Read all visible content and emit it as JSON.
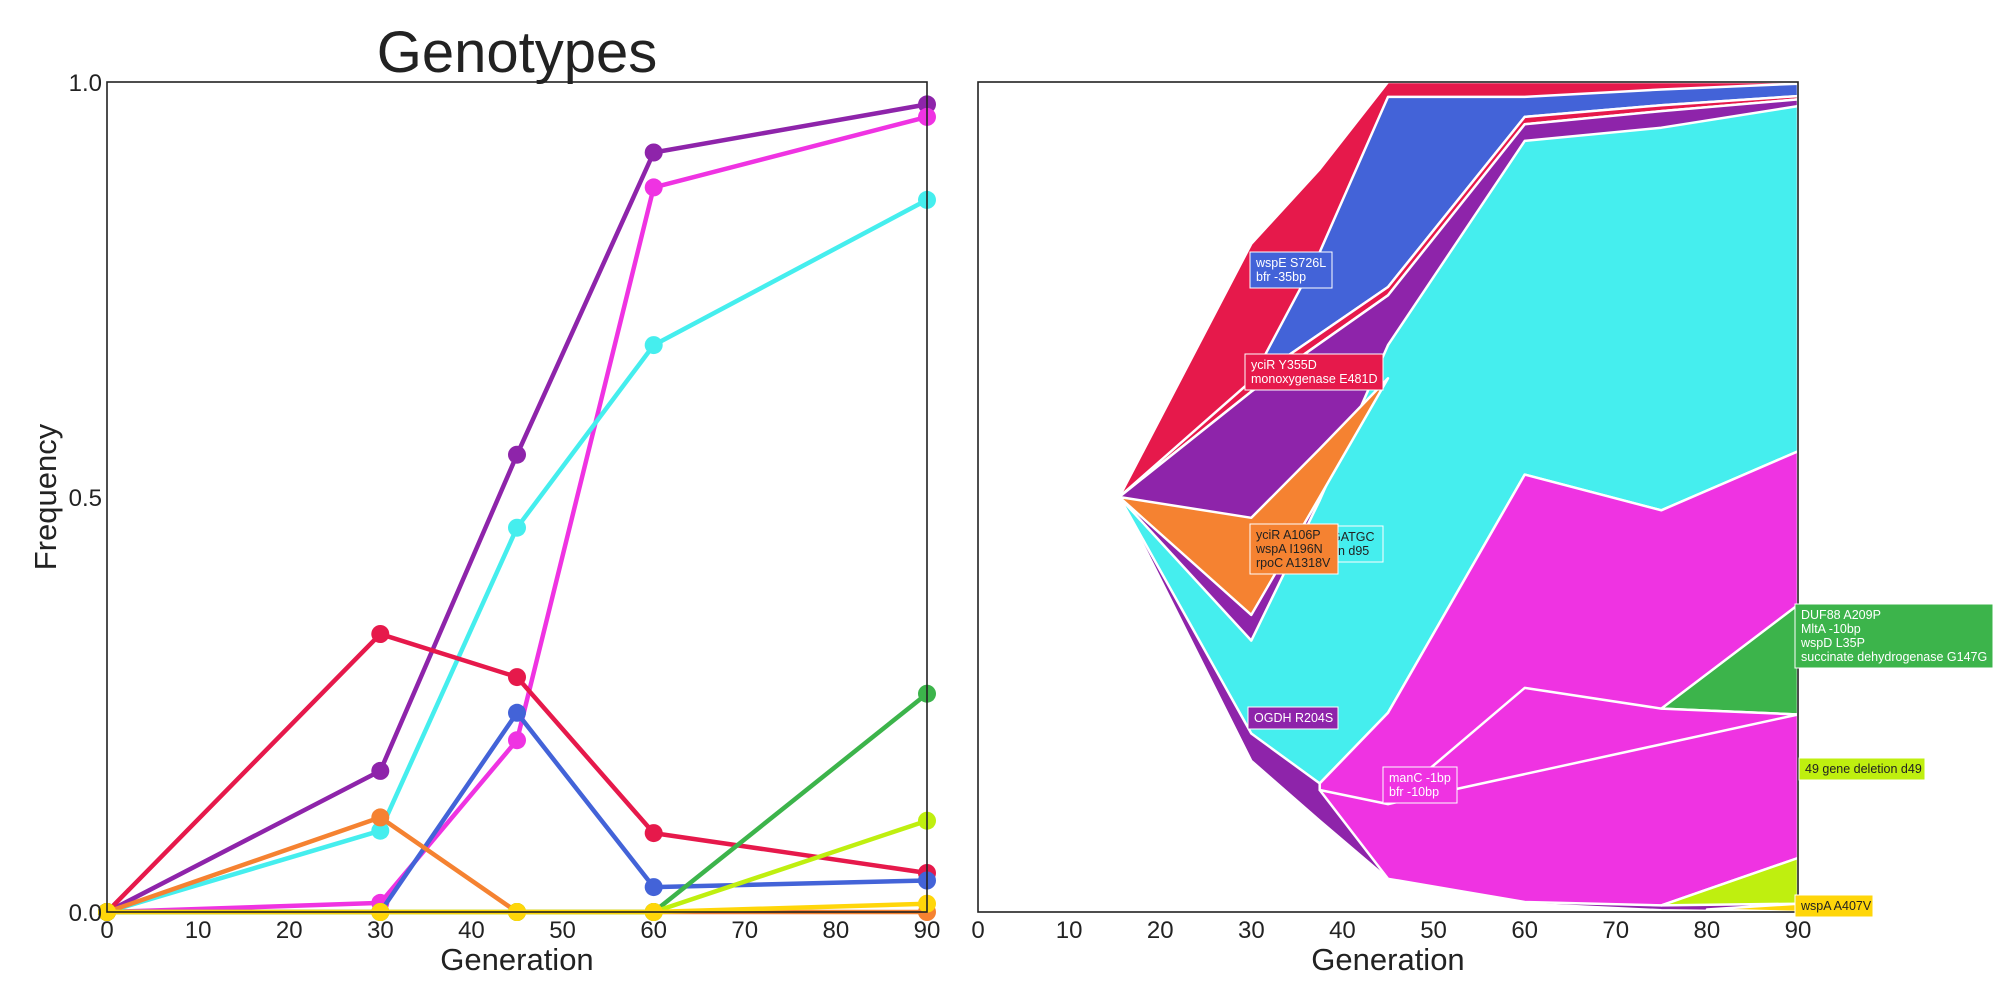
{
  "chart_data": [
    {
      "type": "line",
      "title": "Genotypes",
      "xlabel": "Generation",
      "ylabel": "Frequency",
      "xlim": [
        0,
        90
      ],
      "ylim": [
        0,
        1
      ],
      "x_ticks": [
        "0",
        "10",
        "20",
        "30",
        "40",
        "50",
        "60",
        "70",
        "80",
        "90"
      ],
      "y_ticks": [
        "0.0",
        "0.5",
        "1.0"
      ],
      "grid": false,
      "x": [
        0,
        30,
        45,
        60,
        90
      ],
      "series": [
        {
          "color": "#8e24aa",
          "values": [
            0.0,
            0.17,
            0.551,
            0.915,
            0.973
          ]
        },
        {
          "color": "#ef33e2",
          "values": [
            0.0,
            0.011,
            0.207,
            0.873,
            0.958
          ]
        },
        {
          "color": "#45eeee",
          "values": [
            0.0,
            0.098,
            0.463,
            0.683,
            0.858
          ]
        },
        {
          "color": "#e6194b",
          "values": [
            0.0,
            0.335,
            0.283,
            0.095,
            0.047
          ]
        },
        {
          "color": "#4363d8",
          "values": [
            0.0,
            0.0,
            0.24,
            0.03,
            0.038
          ]
        },
        {
          "color": "#f58231",
          "values": [
            0.0,
            0.114,
            0.0,
            0.0,
            0.0
          ]
        },
        {
          "color": "#3cb44b",
          "values": [
            0.0,
            0.0,
            0.0,
            0.0,
            0.263
          ]
        },
        {
          "color": "#bfef0f",
          "values": [
            0.0,
            0.0,
            0.0,
            0.0,
            0.11
          ]
        },
        {
          "color": "#ffd60a",
          "values": [
            0.0,
            0.0,
            0.0,
            0.0,
            0.01
          ]
        }
      ]
    },
    {
      "type": "area",
      "xlabel": "Generation",
      "xlim": [
        0,
        90
      ],
      "ylim": [
        0,
        1
      ],
      "x_ticks": [
        "0",
        "10",
        "20",
        "30",
        "40",
        "50",
        "60",
        "70",
        "80",
        "90"
      ],
      "grid": false,
      "regions": [
        {
          "color": "#e6194b",
          "top": [
            [
              15.5,
              0.5
            ],
            [
              30,
              0.805
            ],
            [
              37.5,
              0.895
            ],
            [
              45,
              1.0
            ],
            [
              90,
              1.0
            ]
          ],
          "bottom": [
            [
              15.5,
              0.5
            ],
            [
              30,
              0.475
            ],
            [
              37.5,
              0.558
            ],
            [
              45,
              0.643
            ],
            [
              60,
              0.937
            ],
            [
              75,
              0.946
            ],
            [
              90,
              0.964
            ]
          ]
        },
        {
          "color": "#4363d8",
          "top": [
            [
              30,
              0.64
            ],
            [
              37.5,
              0.795
            ],
            [
              45,
              0.982
            ],
            [
              60,
              0.982
            ],
            [
              75,
              0.991
            ],
            [
              90,
              0.998
            ]
          ],
          "bottom": [
            [
              30,
              0.64
            ],
            [
              45,
              0.753
            ],
            [
              60,
              0.958
            ],
            [
              75,
              0.972
            ],
            [
              90,
              0.983
            ]
          ]
        },
        {
          "color": "#e6194b",
          "top": [
            [
              15.5,
              0.5
            ],
            [
              30,
              0.64
            ],
            [
              45,
              0.753
            ],
            [
              60,
              0.958
            ],
            [
              75,
              0.972
            ],
            [
              90,
              0.983
            ]
          ],
          "bottom": [
            [
              15.5,
              0.5
            ],
            [
              30,
              0.627
            ],
            [
              45,
              0.743
            ],
            [
              60,
              0.949
            ],
            [
              75,
              0.965
            ],
            [
              90,
              0.979
            ]
          ]
        },
        {
          "color": "#8e24aa",
          "top": [
            [
              15.5,
              0.5
            ],
            [
              30,
              0.627
            ],
            [
              45,
              0.743
            ],
            [
              60,
              0.949
            ],
            [
              75,
              0.965
            ],
            [
              90,
              0.979
            ]
          ],
          "bottom": [
            [
              15.5,
              0.5
            ],
            [
              30,
              0.182
            ],
            [
              37.5,
              0.11
            ],
            [
              45,
              0.04
            ],
            [
              60,
              0.01
            ],
            [
              75,
              0.002
            ],
            [
              90,
              0.0
            ]
          ]
        },
        {
          "color": "#45eeee",
          "top": [
            [
              15.5,
              0.5
            ],
            [
              30,
              0.327
            ],
            [
              37.5,
              0.496
            ],
            [
              45,
              0.683
            ],
            [
              60,
              0.929
            ],
            [
              75,
              0.945
            ],
            [
              90,
              0.971
            ]
          ],
          "bottom": [
            [
              15.5,
              0.5
            ],
            [
              30,
              0.215
            ],
            [
              37.5,
              0.155
            ],
            [
              45,
              0.24
            ],
            [
              60,
              0.527
            ],
            [
              75,
              0.484
            ],
            [
              90,
              0.555
            ]
          ]
        },
        {
          "color": "#f58231",
          "top": [
            [
              15.5,
              0.5
            ],
            [
              30,
              0.475
            ],
            [
              37.5,
              0.558
            ],
            [
              45,
              0.643
            ]
          ],
          "bottom": [
            [
              15.5,
              0.5
            ],
            [
              30,
              0.358
            ],
            [
              37.5,
              0.5
            ],
            [
              45,
              0.643
            ]
          ]
        },
        {
          "color": "#ef33e2",
          "top": [
            [
              37.5,
              0.155
            ],
            [
              45,
              0.24
            ],
            [
              60,
              0.527
            ],
            [
              75,
              0.484
            ],
            [
              90,
              0.555
            ]
          ],
          "bottom": [
            [
              37.5,
              0.147
            ],
            [
              45,
              0.04
            ],
            [
              60,
              0.012
            ],
            [
              75,
              0.008
            ],
            [
              90,
              0.065
            ]
          ]
        },
        {
          "color": "#3cb44b",
          "top": [
            [
              75,
              0.245
            ],
            [
              90,
              0.37
            ]
          ],
          "bottom": [
            [
              75,
              0.245
            ],
            [
              90,
              0.238
            ]
          ]
        },
        {
          "color": "#ef33e2",
          "top": [
            [
              37.5,
              0.147
            ],
            [
              45,
              0.13
            ],
            [
              60,
              0.27
            ],
            [
              75,
              0.245
            ],
            [
              90,
              0.238
            ]
          ],
          "bottom": [
            [
              37.5,
              0.147
            ],
            [
              45,
              0.13
            ],
            [
              52,
              0.147
            ]
          ]
        },
        {
          "color": "#bfef0f",
          "top": [
            [
              75,
              0.008
            ],
            [
              90,
              0.065
            ]
          ],
          "bottom": [
            [
              75,
              0.008
            ],
            [
              90,
              0.01
            ]
          ]
        },
        {
          "color": "#ffd60a",
          "top": [
            [
              80,
              0.003
            ],
            [
              90,
              0.01
            ]
          ],
          "bottom": [
            [
              80,
              0.003
            ],
            [
              90,
              0.0
            ]
          ]
        }
      ],
      "annotations": [
        {
          "color": "#4363d8",
          "lines": [
            "wspE S726L",
            "bfr -35bp"
          ]
        },
        {
          "color": "#e6194b",
          "lines": [
            "yciR Y355D",
            "monoxygenase E481D"
          ]
        },
        {
          "color": "#45eeee",
          "lines": [
            "GATGC",
            "on d95"
          ]
        },
        {
          "color": "#f58231",
          "lines": [
            "yciR A106P",
            "wspA I196N",
            "rpoC A1318V"
          ]
        },
        {
          "color": "#8e24aa",
          "lines": [
            "OGDH R204S"
          ]
        },
        {
          "color": "#ef33e2",
          "lines": [
            "manC -1bp",
            "bfr -10bp"
          ]
        },
        {
          "color": "#3cb44b",
          "lines": [
            "DUF88 A209P",
            "MltA -10bp",
            "wspD L35P",
            "succinate dehydrogenase G147G"
          ]
        },
        {
          "color": "#bfef0f",
          "lines": [
            "49 gene deletion d49"
          ]
        },
        {
          "color": "#ffd60a",
          "lines": [
            "wspA A407V"
          ]
        }
      ]
    }
  ]
}
